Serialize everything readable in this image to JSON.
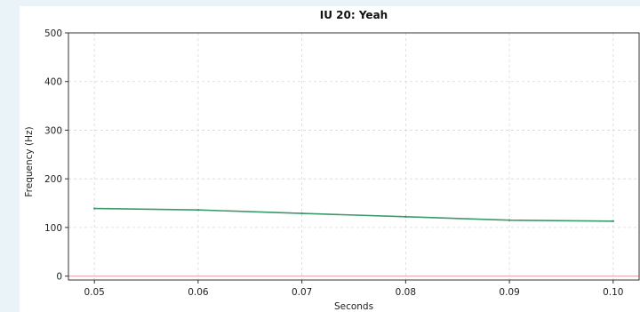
{
  "chart_data": {
    "type": "line",
    "title": "IU 20: Yeah",
    "xlabel": "Seconds",
    "ylabel": "Frequency (Hz)",
    "xlim": [
      0.0475,
      0.1025
    ],
    "ylim": [
      -8,
      500
    ],
    "x_ticks": [
      "0.05",
      "0.06",
      "0.07",
      "0.08",
      "0.09",
      "0.10"
    ],
    "x_tick_values": [
      0.05,
      0.06,
      0.07,
      0.08,
      0.09,
      0.1
    ],
    "y_ticks": [
      "0",
      "100",
      "200",
      "300",
      "400",
      "500"
    ],
    "y_tick_values": [
      0,
      100,
      200,
      300,
      400,
      500
    ],
    "grid": true,
    "series": [
      {
        "color": "#3a9a6a",
        "x": [
          0.05,
          0.06,
          0.07,
          0.08,
          0.09,
          0.1
        ],
        "y": [
          139,
          136,
          129,
          122,
          115,
          113
        ]
      }
    ],
    "reference_line": {
      "y": 0,
      "color": "#e8a0a0"
    }
  }
}
